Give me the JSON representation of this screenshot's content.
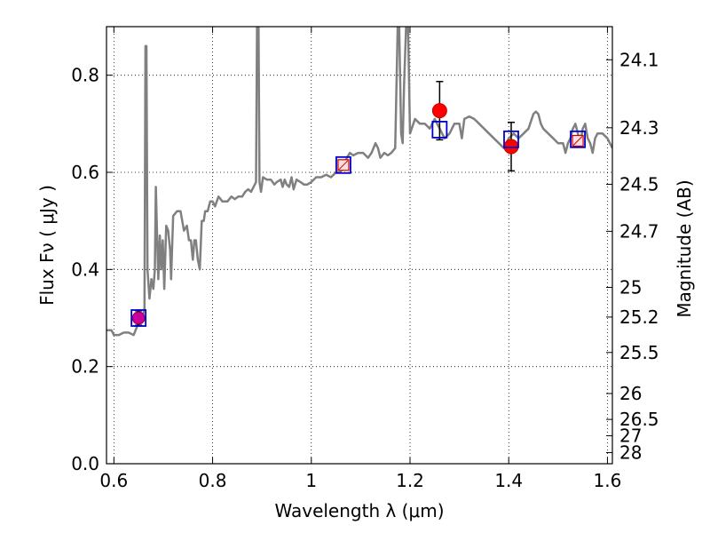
{
  "chart_data": {
    "type": "line",
    "title": "",
    "xlabel": "Wavelength  λ (μm)",
    "ylabel": "Flux  Fν  ( μJy )",
    "y2label": "Magnitude (AB)",
    "xlim": [
      0.585,
      1.61
    ],
    "ylim": [
      0.0,
      0.9
    ],
    "grid": true,
    "x_ticks": [
      0.6,
      0.8,
      1.0,
      1.2,
      1.4,
      1.6
    ],
    "x_tick_labels": [
      "0.6",
      "0.8",
      "1",
      "1.2",
      "1.4",
      "1.6"
    ],
    "y_ticks": [
      0.0,
      0.2,
      0.4,
      0.6,
      0.8
    ],
    "y_tick_labels": [
      "0.0",
      "0.2",
      "0.4",
      "0.6",
      "0.8"
    ],
    "y2_ticks": [
      {
        "label": "24.1",
        "flux": 0.8318
      },
      {
        "label": "24.3",
        "flux": 0.6918
      },
      {
        "label": "24.5",
        "flux": 0.5754
      },
      {
        "label": "24.7",
        "flux": 0.4786
      },
      {
        "label": "25",
        "flux": 0.3631
      },
      {
        "label": "25.2",
        "flux": 0.302
      },
      {
        "label": "25.5",
        "flux": 0.2291
      },
      {
        "label": "26",
        "flux": 0.1445
      },
      {
        "label": "26.5",
        "flux": 0.0912
      },
      {
        "label": "27",
        "flux": 0.0575
      },
      {
        "label": "28",
        "flux": 0.0229
      }
    ],
    "sed_model": {
      "name": "",
      "color": "#808080",
      "points": [
        [
          0.585,
          0.275
        ],
        [
          0.595,
          0.275
        ],
        [
          0.6,
          0.265
        ],
        [
          0.61,
          0.265
        ],
        [
          0.62,
          0.27
        ],
        [
          0.63,
          0.27
        ],
        [
          0.64,
          0.265
        ],
        [
          0.65,
          0.29
        ],
        [
          0.655,
          0.305
        ],
        [
          0.658,
          0.3
        ],
        [
          0.662,
          0.32
        ],
        [
          0.664,
          0.86
        ],
        [
          0.666,
          0.86
        ],
        [
          0.668,
          0.4
        ],
        [
          0.672,
          0.34
        ],
        [
          0.676,
          0.38
        ],
        [
          0.68,
          0.36
        ],
        [
          0.683,
          0.4
        ],
        [
          0.685,
          0.57
        ],
        [
          0.688,
          0.45
        ],
        [
          0.69,
          0.38
        ],
        [
          0.693,
          0.47
        ],
        [
          0.696,
          0.4
        ],
        [
          0.699,
          0.46
        ],
        [
          0.702,
          0.36
        ],
        [
          0.706,
          0.49
        ],
        [
          0.71,
          0.48
        ],
        [
          0.714,
          0.44
        ],
        [
          0.716,
          0.38
        ],
        [
          0.72,
          0.51
        ],
        [
          0.728,
          0.52
        ],
        [
          0.735,
          0.52
        ],
        [
          0.742,
          0.48
        ],
        [
          0.748,
          0.49
        ],
        [
          0.752,
          0.46
        ],
        [
          0.756,
          0.46
        ],
        [
          0.76,
          0.42
        ],
        [
          0.763,
          0.46
        ],
        [
          0.766,
          0.46
        ],
        [
          0.77,
          0.42
        ],
        [
          0.774,
          0.4
        ],
        [
          0.778,
          0.5
        ],
        [
          0.782,
          0.5
        ],
        [
          0.785,
          0.52
        ],
        [
          0.79,
          0.52
        ],
        [
          0.795,
          0.54
        ],
        [
          0.8,
          0.54
        ],
        [
          0.805,
          0.53
        ],
        [
          0.812,
          0.55
        ],
        [
          0.82,
          0.54
        ],
        [
          0.83,
          0.54
        ],
        [
          0.838,
          0.55
        ],
        [
          0.845,
          0.545
        ],
        [
          0.852,
          0.55
        ],
        [
          0.86,
          0.55
        ],
        [
          0.866,
          0.56
        ],
        [
          0.872,
          0.565
        ],
        [
          0.878,
          0.56
        ],
        [
          0.883,
          0.57
        ],
        [
          0.888,
          0.58
        ],
        [
          0.89,
          0.9
        ],
        [
          0.893,
          0.9
        ],
        [
          0.895,
          0.58
        ],
        [
          0.898,
          0.56
        ],
        [
          0.902,
          0.59
        ],
        [
          0.91,
          0.585
        ],
        [
          0.918,
          0.585
        ],
        [
          0.925,
          0.575
        ],
        [
          0.93,
          0.58
        ],
        [
          0.938,
          0.585
        ],
        [
          0.942,
          0.57
        ],
        [
          0.946,
          0.585
        ],
        [
          0.95,
          0.575
        ],
        [
          0.955,
          0.57
        ],
        [
          0.96,
          0.59
        ],
        [
          0.964,
          0.565
        ],
        [
          0.97,
          0.585
        ],
        [
          0.978,
          0.58
        ],
        [
          0.985,
          0.575
        ],
        [
          0.992,
          0.575
        ],
        [
          1.0,
          0.58
        ],
        [
          1.01,
          0.59
        ],
        [
          1.02,
          0.59
        ],
        [
          1.03,
          0.595
        ],
        [
          1.04,
          0.59
        ],
        [
          1.05,
          0.6
        ],
        [
          1.058,
          0.6
        ],
        [
          1.065,
          0.61
        ],
        [
          1.072,
          0.63
        ],
        [
          1.078,
          0.64
        ],
        [
          1.085,
          0.635
        ],
        [
          1.095,
          0.64
        ],
        [
          1.105,
          0.64
        ],
        [
          1.115,
          0.63
        ],
        [
          1.122,
          0.64
        ],
        [
          1.13,
          0.66
        ],
        [
          1.135,
          0.65
        ],
        [
          1.14,
          0.63
        ],
        [
          1.148,
          0.64
        ],
        [
          1.155,
          0.635
        ],
        [
          1.162,
          0.64
        ],
        [
          1.17,
          0.65
        ],
        [
          1.175,
          0.9
        ],
        [
          1.178,
          0.9
        ],
        [
          1.182,
          0.68
        ],
        [
          1.185,
          0.66
        ],
        [
          1.188,
          0.78
        ],
        [
          1.192,
          0.9
        ],
        [
          1.196,
          0.9
        ],
        [
          1.2,
          0.68
        ],
        [
          1.21,
          0.71
        ],
        [
          1.22,
          0.7
        ],
        [
          1.23,
          0.7
        ],
        [
          1.24,
          0.69
        ],
        [
          1.25,
          0.71
        ],
        [
          1.26,
          0.69
        ],
        [
          1.27,
          0.67
        ],
        [
          1.28,
          0.68
        ],
        [
          1.29,
          0.7
        ],
        [
          1.3,
          0.7
        ],
        [
          1.305,
          0.67
        ],
        [
          1.31,
          0.71
        ],
        [
          1.32,
          0.715
        ],
        [
          1.33,
          0.71
        ],
        [
          1.34,
          0.7
        ],
        [
          1.35,
          0.69
        ],
        [
          1.36,
          0.68
        ],
        [
          1.37,
          0.67
        ],
        [
          1.38,
          0.66
        ],
        [
          1.39,
          0.65
        ],
        [
          1.4,
          0.67
        ],
        [
          1.41,
          0.68
        ],
        [
          1.42,
          0.67
        ],
        [
          1.43,
          0.68
        ],
        [
          1.44,
          0.69
        ],
        [
          1.45,
          0.72
        ],
        [
          1.455,
          0.725
        ],
        [
          1.46,
          0.72
        ],
        [
          1.465,
          0.7
        ],
        [
          1.47,
          0.69
        ],
        [
          1.48,
          0.68
        ],
        [
          1.49,
          0.67
        ],
        [
          1.5,
          0.66
        ],
        [
          1.51,
          0.66
        ],
        [
          1.515,
          0.64
        ],
        [
          1.52,
          0.66
        ],
        [
          1.525,
          0.67
        ],
        [
          1.53,
          0.69
        ],
        [
          1.535,
          0.7
        ],
        [
          1.54,
          0.68
        ],
        [
          1.545,
          0.66
        ],
        [
          1.55,
          0.69
        ],
        [
          1.555,
          0.7
        ],
        [
          1.56,
          0.67
        ],
        [
          1.565,
          0.66
        ],
        [
          1.57,
          0.64
        ],
        [
          1.575,
          0.67
        ],
        [
          1.58,
          0.68
        ],
        [
          1.59,
          0.68
        ],
        [
          1.6,
          0.67
        ],
        [
          1.61,
          0.65
        ]
      ]
    },
    "model_photometry": {
      "name": "",
      "color": "#0000cc",
      "points": [
        [
          0.65,
          0.3
        ],
        [
          1.065,
          0.615
        ],
        [
          1.26,
          0.688
        ],
        [
          1.405,
          0.668
        ],
        [
          1.54,
          0.668
        ]
      ]
    },
    "observed_photometry": {
      "name": "",
      "color": "#ff0000",
      "points": [
        {
          "x": 1.26,
          "y": 0.727,
          "err_low": 0.06,
          "err_high": 0.06
        },
        {
          "x": 1.405,
          "y": 0.653,
          "err_low": 0.05,
          "err_high": 0.05
        }
      ]
    },
    "other_photometry": {
      "name": "",
      "color": "#cc0099",
      "points": [
        {
          "x": 0.65,
          "y": 0.3,
          "err_low": 0.015,
          "err_high": 0.015,
          "marker": "circle"
        },
        {
          "x": 1.065,
          "y": 0.615,
          "err_low": 0.01,
          "err_high": 0.01,
          "marker": "hatched"
        },
        {
          "x": 1.54,
          "y": 0.665,
          "err_low": 0.01,
          "err_high": 0.01,
          "marker": "hatched"
        }
      ]
    }
  }
}
